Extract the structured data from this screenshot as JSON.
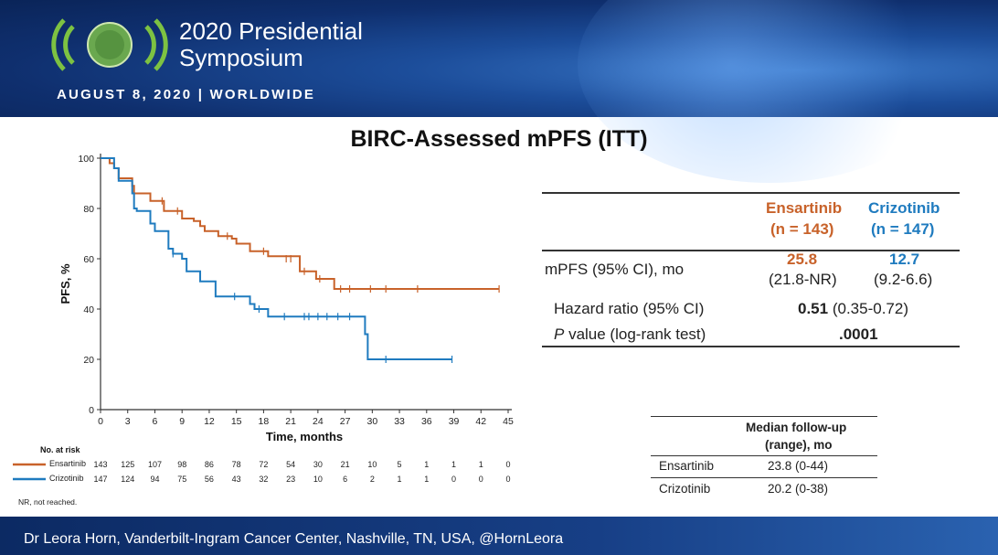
{
  "header": {
    "title_line1": "2020 Presidential",
    "title_line2": "Symposium",
    "date": "AUGUST 8, 2020 | WORLDWIDE"
  },
  "slide_title": "BIRC-Assessed mPFS (ITT)",
  "colors": {
    "ensartinib": "#c8622a",
    "crizotinib": "#1f7bbf"
  },
  "chart_data": {
    "type": "line",
    "subtype": "kaplan-meier",
    "xlabel": "Time, months",
    "ylabel": "PFS, %",
    "xlim": [
      0,
      45
    ],
    "ylim": [
      0,
      100
    ],
    "xticks": [
      0,
      3,
      6,
      9,
      12,
      15,
      18,
      21,
      24,
      27,
      30,
      33,
      36,
      39,
      42,
      45
    ],
    "yticks": [
      0,
      20,
      40,
      60,
      80,
      100
    ],
    "series": [
      {
        "name": "Ensartinib",
        "color": "#c8622a",
        "steps": [
          [
            0,
            100
          ],
          [
            1,
            98
          ],
          [
            1.5,
            96
          ],
          [
            2,
            92
          ],
          [
            3.5,
            89
          ],
          [
            3.7,
            86
          ],
          [
            5.5,
            83
          ],
          [
            7,
            79
          ],
          [
            9,
            76
          ],
          [
            10.3,
            75
          ],
          [
            11,
            73
          ],
          [
            11.5,
            71
          ],
          [
            13,
            69
          ],
          [
            14.5,
            68
          ],
          [
            15,
            66
          ],
          [
            16.5,
            63
          ],
          [
            18.5,
            61
          ],
          [
            22,
            55
          ],
          [
            23.8,
            52
          ],
          [
            25.8,
            48
          ],
          [
            44,
            48
          ]
        ],
        "censored": [
          [
            6.8,
            83
          ],
          [
            8.5,
            79
          ],
          [
            14,
            69
          ],
          [
            18,
            63
          ],
          [
            20.5,
            60
          ],
          [
            21,
            60
          ],
          [
            22.5,
            55
          ],
          [
            24.2,
            52
          ],
          [
            26.5,
            48
          ],
          [
            27.5,
            48
          ],
          [
            29.8,
            48
          ],
          [
            31.5,
            48
          ],
          [
            35,
            48
          ],
          [
            44,
            48
          ]
        ]
      },
      {
        "name": "Crizotinib",
        "color": "#1f7bbf",
        "steps": [
          [
            0,
            100
          ],
          [
            1.5,
            96
          ],
          [
            2,
            91
          ],
          [
            3.5,
            86
          ],
          [
            3.7,
            80
          ],
          [
            4,
            79
          ],
          [
            5.5,
            74
          ],
          [
            6,
            71
          ],
          [
            7.5,
            64
          ],
          [
            8,
            62
          ],
          [
            9,
            60
          ],
          [
            9.5,
            55
          ],
          [
            11,
            51
          ],
          [
            12.7,
            45
          ],
          [
            16.5,
            42
          ],
          [
            17,
            40
          ],
          [
            18.5,
            37
          ],
          [
            29.2,
            30
          ],
          [
            29.5,
            20
          ],
          [
            38.8,
            20
          ]
        ],
        "censored": [
          [
            8,
            62
          ],
          [
            14.8,
            45
          ],
          [
            17.5,
            40
          ],
          [
            20.3,
            37
          ],
          [
            22.5,
            37
          ],
          [
            23,
            37
          ],
          [
            24,
            37
          ],
          [
            25,
            37
          ],
          [
            26.2,
            37
          ],
          [
            27.5,
            37
          ],
          [
            31.5,
            20
          ],
          [
            38.8,
            20
          ]
        ]
      }
    ],
    "risk_table": {
      "title": "No. at risk",
      "times": [
        0,
        3,
        6,
        9,
        12,
        15,
        18,
        21,
        24,
        27,
        30,
        33,
        36,
        39,
        42,
        45
      ],
      "rows": [
        {
          "name": "Ensartinib",
          "values": [
            143,
            125,
            107,
            98,
            86,
            78,
            72,
            54,
            30,
            21,
            10,
            5,
            1,
            1,
            1,
            0
          ]
        },
        {
          "name": "Crizotinib",
          "values": [
            147,
            124,
            94,
            75,
            56,
            43,
            32,
            23,
            10,
            6,
            2,
            1,
            1,
            0,
            0,
            0
          ]
        }
      ]
    },
    "footnote": "NR, not reached."
  },
  "summary_table": {
    "col1": {
      "name": "Ensartinib",
      "n": "(n = 143)",
      "mpfs": "25.8",
      "ci": "(21.8-NR)"
    },
    "col2": {
      "name": "Crizotinib",
      "n": "(n = 147)",
      "mpfs": "12.7",
      "ci": "(9.2-6.6)"
    },
    "mpfs_label": "mPFS (95% CI), mo",
    "hr_label": "Hazard ratio (95% CI)",
    "hr_value": "0.51",
    "hr_ci": "(0.35-0.72)",
    "p_label_italic": "P",
    "p_label_rest": " value (log-rank test)",
    "p_value": ".0001"
  },
  "followup_table": {
    "header_line1": "Median follow-up",
    "header_line2": "(range), mo",
    "rows": [
      {
        "name": "Ensartinib",
        "value": "23.8 (0-44)"
      },
      {
        "name": "Crizotinib",
        "value": "20.2 (0-38)"
      }
    ]
  },
  "footer": "Dr Leora Horn, Vanderbilt-Ingram Cancer Center, Nashville, TN, USA, @HornLeora"
}
